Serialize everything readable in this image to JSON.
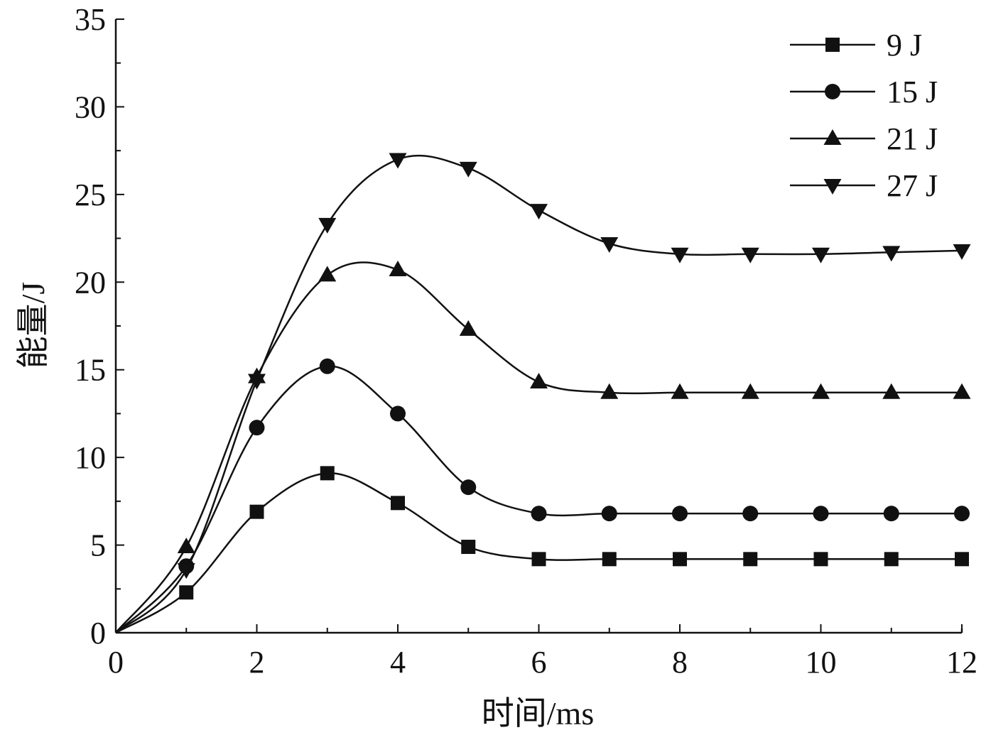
{
  "chart_data": {
    "type": "line",
    "title": "",
    "xlabel": "时间/ms",
    "ylabel": "能量/J",
    "xlim": [
      0,
      12
    ],
    "ylim": [
      0,
      35
    ],
    "xticks": [
      0,
      2,
      4,
      6,
      8,
      10,
      12
    ],
    "yticks": [
      0,
      5,
      10,
      15,
      20,
      25,
      30,
      35
    ],
    "grid": false,
    "legend_position": "top-right",
    "line_color": "#111111",
    "x": [
      0,
      1,
      2,
      3,
      4,
      5,
      6,
      7,
      8,
      9,
      10,
      11,
      12
    ],
    "series": [
      {
        "name": "9 J",
        "marker": "square",
        "values": [
          0,
          2.3,
          6.9,
          9.1,
          7.4,
          4.9,
          4.2,
          4.2,
          4.2,
          4.2,
          4.2,
          4.2,
          4.2
        ]
      },
      {
        "name": "15 J",
        "marker": "circle",
        "values": [
          0,
          3.8,
          11.7,
          15.2,
          12.5,
          8.3,
          6.8,
          6.8,
          6.8,
          6.8,
          6.8,
          6.8,
          6.8
        ]
      },
      {
        "name": "21 J",
        "marker": "triangle-up",
        "values": [
          0,
          4.9,
          14.6,
          20.4,
          20.7,
          17.3,
          14.3,
          13.7,
          13.7,
          13.7,
          13.7,
          13.7,
          13.7
        ]
      },
      {
        "name": "27 J",
        "marker": "triangle-down",
        "values": [
          0,
          3.6,
          14.4,
          23.3,
          27.0,
          26.5,
          24.1,
          22.2,
          21.6,
          21.6,
          21.6,
          21.7,
          21.8
        ]
      }
    ]
  }
}
